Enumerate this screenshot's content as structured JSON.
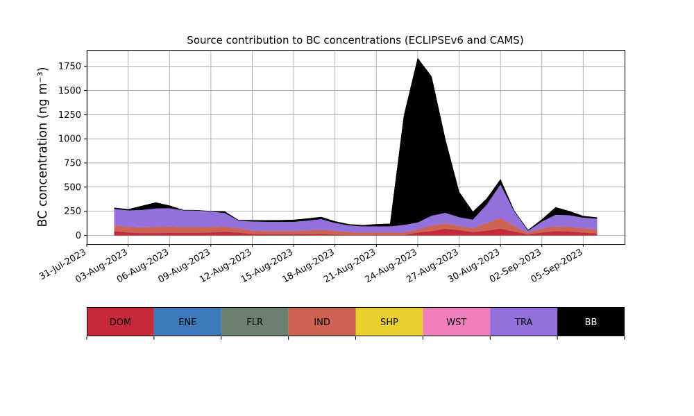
{
  "chart_data": {
    "type": "area",
    "title": "Source contribution to BC concentrations (ECLIPSEv6 and CAMS)",
    "ylabel": "BC concentration (ng m⁻³)",
    "xlabel": "",
    "x_range": [
      "2023-07-31",
      "2023-09-08"
    ],
    "ylim": [
      -90,
      1920
    ],
    "yticks": [
      0,
      250,
      500,
      750,
      1000,
      1250,
      1500,
      1750
    ],
    "xtick_labels": [
      "31-Jul-2023",
      "03-Aug-2023",
      "06-Aug-2023",
      "09-Aug-2023",
      "12-Aug-2023",
      "15-Aug-2023",
      "18-Aug-2023",
      "21-Aug-2023",
      "24-Aug-2023",
      "27-Aug-2023",
      "30-Aug-2023",
      "02-Sep-2023",
      "05-Sep-2023"
    ],
    "grid": true,
    "stacked": true,
    "dates": [
      "2023-08-02",
      "2023-08-03",
      "2023-08-04",
      "2023-08-05",
      "2023-08-06",
      "2023-08-07",
      "2023-08-08",
      "2023-08-09",
      "2023-08-10",
      "2023-08-11",
      "2023-08-12",
      "2023-08-13",
      "2023-08-14",
      "2023-08-15",
      "2023-08-16",
      "2023-08-17",
      "2023-08-18",
      "2023-08-19",
      "2023-08-20",
      "2023-08-21",
      "2023-08-22",
      "2023-08-23",
      "2023-08-24",
      "2023-08-25",
      "2023-08-26",
      "2023-08-27",
      "2023-08-28",
      "2023-08-29",
      "2023-08-30",
      "2023-08-31",
      "2023-09-01",
      "2023-09-02",
      "2023-09-03",
      "2023-09-04",
      "2023-09-05",
      "2023-09-06"
    ],
    "series": [
      {
        "name": "DOM",
        "color": "#c62a3a",
        "values": [
          45,
          30,
          25,
          25,
          28,
          28,
          28,
          30,
          38,
          30,
          15,
          12,
          12,
          12,
          14,
          15,
          10,
          5,
          5,
          5,
          5,
          5,
          30,
          45,
          70,
          55,
          35,
          50,
          70,
          40,
          10,
          30,
          45,
          40,
          30,
          20
        ]
      },
      {
        "name": "ENE",
        "color": "#3a7ab8",
        "values": [
          0,
          0,
          0,
          0,
          0,
          0,
          0,
          0,
          0,
          0,
          0,
          0,
          0,
          0,
          0,
          0,
          0,
          0,
          0,
          0,
          0,
          0,
          0,
          0,
          0,
          0,
          0,
          0,
          0,
          0,
          0,
          0,
          0,
          0,
          0,
          0
        ]
      },
      {
        "name": "FLR",
        "color": "#6c8070",
        "values": [
          0,
          0,
          0,
          0,
          0,
          0,
          0,
          0,
          0,
          0,
          0,
          0,
          0,
          0,
          0,
          0,
          0,
          0,
          0,
          0,
          0,
          0,
          0,
          0,
          0,
          0,
          0,
          0,
          0,
          0,
          0,
          0,
          0,
          0,
          0,
          0
        ]
      },
      {
        "name": "IND",
        "color": "#cb6454",
        "values": [
          60,
          60,
          60,
          65,
          65,
          60,
          60,
          58,
          55,
          45,
          35,
          35,
          35,
          35,
          40,
          45,
          40,
          30,
          25,
          25,
          25,
          25,
          35,
          60,
          55,
          45,
          40,
          80,
          110,
          60,
          20,
          45,
          50,
          50,
          45,
          45
        ]
      },
      {
        "name": "SHP",
        "color": "#e8d12e",
        "values": [
          0,
          0,
          0,
          0,
          0,
          0,
          0,
          0,
          0,
          0,
          0,
          0,
          0,
          0,
          0,
          0,
          0,
          0,
          0,
          0,
          0,
          0,
          0,
          0,
          0,
          0,
          0,
          0,
          0,
          0,
          0,
          0,
          0,
          0,
          0,
          0
        ]
      },
      {
        "name": "WST",
        "color": "#f07fbd",
        "values": [
          0,
          0,
          0,
          0,
          0,
          0,
          0,
          0,
          0,
          0,
          0,
          0,
          0,
          0,
          0,
          0,
          0,
          0,
          0,
          0,
          0,
          0,
          0,
          0,
          0,
          0,
          0,
          0,
          0,
          0,
          0,
          0,
          0,
          0,
          0,
          0
        ]
      },
      {
        "name": "TRA",
        "color": "#9370db",
        "values": [
          170,
          170,
          180,
          190,
          190,
          172,
          170,
          160,
          140,
          80,
          95,
          95,
          95,
          95,
          100,
          110,
          80,
          70,
          65,
          65,
          65,
          80,
          70,
          100,
          110,
          90,
          90,
          190,
          350,
          150,
          20,
          70,
          120,
          120,
          110,
          110
        ]
      },
      {
        "name": "BB",
        "color": "#000000",
        "values": [
          10,
          10,
          40,
          60,
          25,
          2,
          2,
          2,
          15,
          3,
          12,
          14,
          15,
          18,
          20,
          20,
          15,
          10,
          10,
          20,
          25,
          1130,
          1700,
          1440,
          760,
          260,
          80,
          60,
          50,
          5,
          5,
          20,
          75,
          40,
          15,
          10
        ]
      }
    ]
  },
  "legend": {
    "items": [
      {
        "name": "DOM",
        "color": "#c62a3a",
        "text_color": "#000000"
      },
      {
        "name": "ENE",
        "color": "#3a7ab8",
        "text_color": "#000000"
      },
      {
        "name": "FLR",
        "color": "#6c8070",
        "text_color": "#000000"
      },
      {
        "name": "IND",
        "color": "#cb6454",
        "text_color": "#000000"
      },
      {
        "name": "SHP",
        "color": "#e8d12e",
        "text_color": "#000000"
      },
      {
        "name": "WST",
        "color": "#f07fbd",
        "text_color": "#000000"
      },
      {
        "name": "TRA",
        "color": "#9370db",
        "text_color": "#000000"
      },
      {
        "name": "BB",
        "color": "#000000",
        "text_color": "#ffffff"
      }
    ]
  }
}
